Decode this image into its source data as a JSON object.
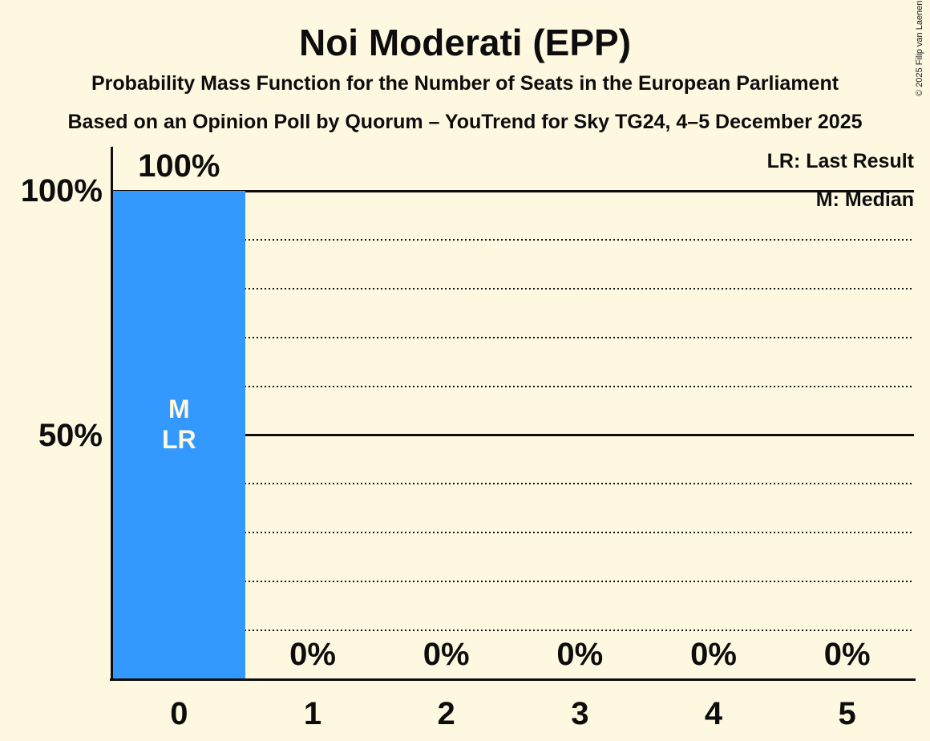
{
  "page": {
    "background_color": "#FFF8E0",
    "text_color": "#0D0D0D",
    "copyright": "© 2025 Filip van Laenen"
  },
  "chart_data": {
    "type": "bar",
    "title": "Noi Moderati (EPP)",
    "subtitle": "Probability Mass Function for the Number of Seats in the European Parliament",
    "source_line": "Based on an Opinion Poll by Quorum – YouTrend for Sky TG24, 4–5 December 2025",
    "xlabel": "",
    "ylabel": "",
    "categories": [
      "0",
      "1",
      "2",
      "3",
      "4",
      "5"
    ],
    "values": [
      100,
      0,
      0,
      0,
      0,
      0
    ],
    "bar_value_labels": [
      "100%",
      "0%",
      "0%",
      "0%",
      "0%",
      "0%"
    ],
    "bar_color": "#3399FF",
    "bar_annotations": [
      {
        "category_index": 0,
        "lines": [
          "M",
          "LR"
        ]
      }
    ],
    "ylim": [
      0,
      100
    ],
    "yticks": [
      {
        "value": 100,
        "label": "100%"
      },
      {
        "value": 50,
        "label": "50%"
      }
    ],
    "gridlines": [
      {
        "value": 100,
        "style": "solid"
      },
      {
        "value": 90,
        "style": "dotted"
      },
      {
        "value": 80,
        "style": "dotted"
      },
      {
        "value": 70,
        "style": "dotted"
      },
      {
        "value": 60,
        "style": "dotted"
      },
      {
        "value": 50,
        "style": "solid"
      },
      {
        "value": 40,
        "style": "dotted"
      },
      {
        "value": 30,
        "style": "dotted"
      },
      {
        "value": 20,
        "style": "dotted"
      },
      {
        "value": 10,
        "style": "dotted"
      }
    ],
    "legend": [
      {
        "label": "LR: Last Result"
      },
      {
        "label": "M: Median"
      }
    ],
    "legend_position": "top-right",
    "grid": "horizontal"
  }
}
